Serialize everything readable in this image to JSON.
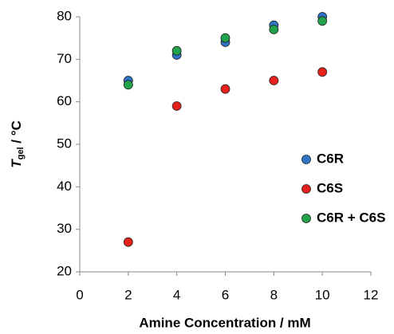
{
  "chart_data": {
    "type": "scatter",
    "xlabel": "Amine Concentration / mM",
    "ylabel": [
      "T",
      "gel",
      " / °C"
    ],
    "series": [
      {
        "name": "C6R",
        "color": "#2e75c6",
        "x": [
          2,
          4,
          6,
          8,
          10
        ],
        "values": [
          65,
          71,
          74,
          78,
          80
        ]
      },
      {
        "name": "C6S",
        "color": "#e8201c",
        "x": [
          2,
          4,
          6,
          8,
          10
        ],
        "values": [
          27,
          59,
          63,
          65,
          67
        ]
      },
      {
        "name": "C6R + C6S",
        "color": "#21a24a",
        "x": [
          2,
          4,
          6,
          8,
          10
        ],
        "values": [
          64,
          72,
          75,
          77,
          79
        ]
      }
    ],
    "xlim": [
      0,
      12
    ],
    "xticks": [
      0,
      2,
      4,
      6,
      8,
      10,
      12
    ],
    "ylim": [
      20,
      80
    ],
    "yticks": [
      20,
      30,
      40,
      50,
      60,
      70,
      80
    ],
    "grid": false,
    "legend": "right"
  }
}
